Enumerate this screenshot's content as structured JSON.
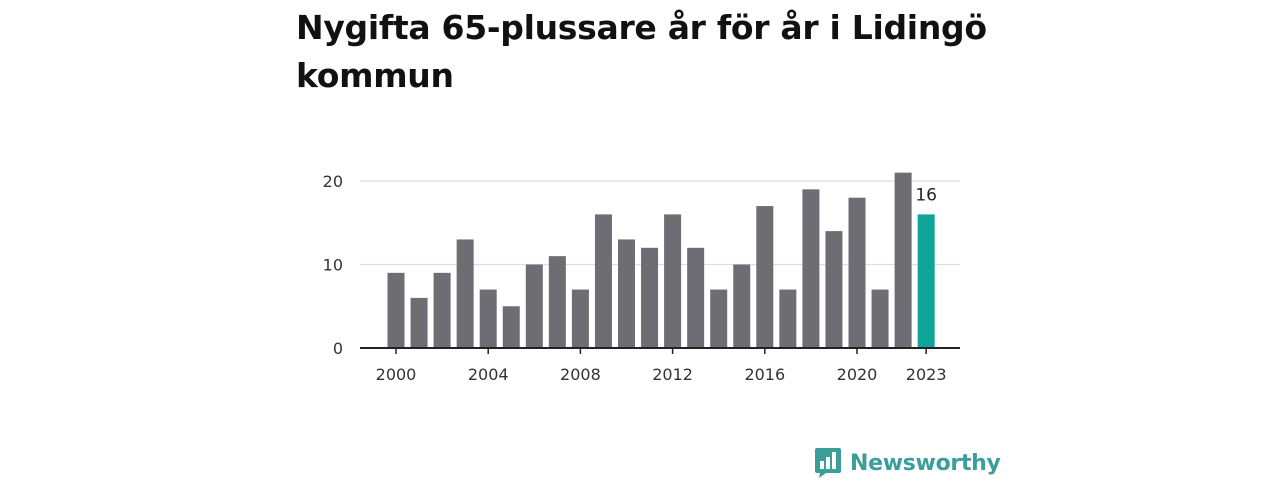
{
  "chart_data": {
    "type": "bar",
    "title": "Nygifta 65-plussare år för år i Lidingö kommun",
    "xlabel": "",
    "ylabel": "",
    "categories": [
      "2000",
      "2001",
      "2002",
      "2003",
      "2004",
      "2005",
      "2006",
      "2007",
      "2008",
      "2009",
      "2010",
      "2011",
      "2012",
      "2013",
      "2014",
      "2015",
      "2016",
      "2017",
      "2018",
      "2019",
      "2020",
      "2021",
      "2022",
      "2023"
    ],
    "values": [
      9,
      6,
      9,
      13,
      7,
      5,
      10,
      11,
      7,
      16,
      13,
      12,
      16,
      12,
      7,
      10,
      17,
      7,
      19,
      14,
      18,
      7,
      21,
      16
    ],
    "x_tick_labels": [
      "2000",
      "2004",
      "2008",
      "2012",
      "2016",
      "2020",
      "2023"
    ],
    "y_ticks": [
      "0",
      "10",
      "20"
    ],
    "ylim": [
      0,
      21
    ],
    "highlight_index": 23,
    "highlight_label": "16",
    "grid": true,
    "colors": {
      "bar": "#6e6d73",
      "highlight": "#0fa49a",
      "grid": "#dddddd",
      "axis": "#222222"
    }
  },
  "brand": {
    "name": "Newsworthy",
    "icon": "bar-chart-speech-bubble-icon",
    "color": "#3c9e9a"
  }
}
